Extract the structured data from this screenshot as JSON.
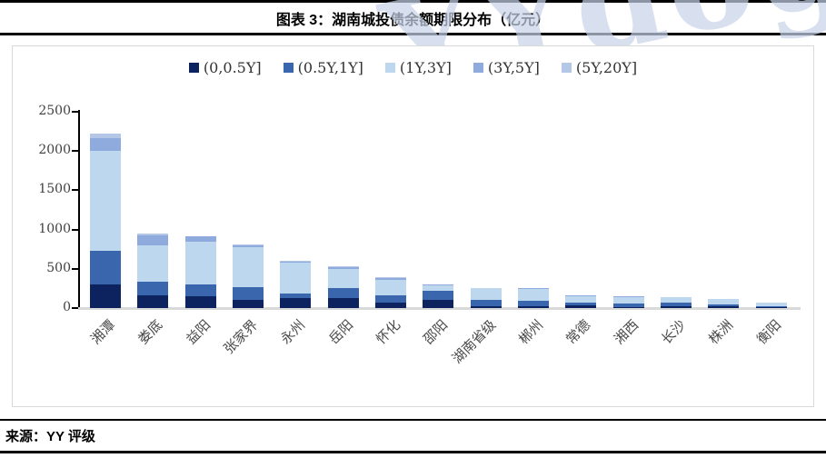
{
  "header": {
    "title": "图表 3：湖南城投债余额期限分布（亿元）"
  },
  "source": {
    "label": "来源：YY 评级"
  },
  "watermark": {
    "text": "YYdog"
  },
  "chart_data": {
    "type": "bar",
    "stacked": true,
    "title": "湖南城投债余额期限分布（亿元）",
    "unit": "亿元",
    "categories": [
      "湘潭",
      "娄底",
      "益阳",
      "张家界",
      "永州",
      "岳阳",
      "怀化",
      "邵阳",
      "湖南省级",
      "郴州",
      "常德",
      "湘西",
      "长沙",
      "株洲",
      "衡阳"
    ],
    "series": [
      {
        "name": "(0,0.5Y]",
        "color": "#0D2360",
        "values": [
          300,
          160,
          150,
          100,
          130,
          130,
          65,
          110,
          20,
          25,
          30,
          15,
          25,
          20,
          10
        ]
      },
      {
        "name": "(0.5Y,1Y]",
        "color": "#3A66AD",
        "values": [
          430,
          180,
          150,
          170,
          60,
          125,
          95,
          115,
          90,
          65,
          45,
          45,
          50,
          30,
          10
        ]
      },
      {
        "name": "(1Y,3Y]",
        "color": "#BDD7EE",
        "values": [
          1270,
          460,
          550,
          510,
          390,
          245,
          200,
          70,
          140,
          155,
          80,
          85,
          60,
          65,
          45
        ]
      },
      {
        "name": "(3Y,5Y]",
        "color": "#8FAADC",
        "values": [
          160,
          130,
          60,
          20,
          15,
          20,
          25,
          5,
          10,
          5,
          5,
          5,
          5,
          5,
          5
        ]
      },
      {
        "name": "(5Y,20Y]",
        "color": "#B4C7E7",
        "values": [
          60,
          20,
          10,
          10,
          5,
          10,
          5,
          5,
          0,
          0,
          0,
          0,
          0,
          0,
          0
        ]
      }
    ],
    "totals": [
      2220,
      950,
      920,
      810,
      600,
      530,
      390,
      305,
      260,
      250,
      160,
      150,
      140,
      120,
      70
    ],
    "ylim": [
      0,
      2500
    ],
    "yticks": [
      0,
      500,
      1000,
      1500,
      2000,
      2500
    ],
    "xlabel": "",
    "ylabel": "",
    "legend_position": "top",
    "grid": false,
    "axis_color": "#000000",
    "baseline_color": "#D9D9D9",
    "frame_border_color": "#D9D9D9"
  }
}
